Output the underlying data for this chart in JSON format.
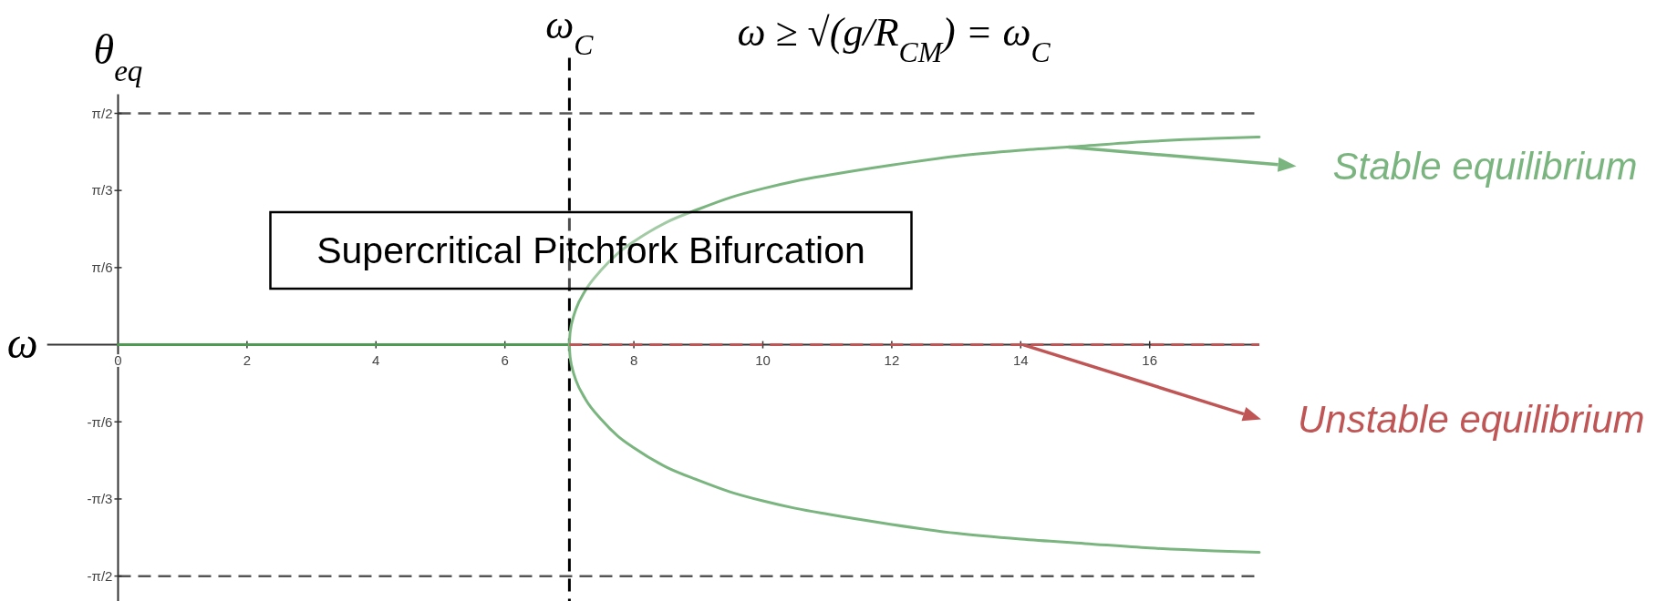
{
  "chart_data": {
    "type": "line",
    "title": "ω ≥ √(g/R$_{CM}$) = ω$_{C}$",
    "xlabel": "ω",
    "ylabel": "θ$_{eq}$",
    "line_style": "solid",
    "legend": "right",
    "series": [
      {
        "color": "#4e9a52",
        "x": [
          0,
          7
        ],
        "values": [
          0,
          0
        ]
      },
      {
        "name": "Stable equilibrium",
        "color": "#7ab57f",
        "x": [
          7,
          7.005,
          7.02,
          7.05,
          7.1,
          7.25,
          7.5,
          7.75,
          8,
          8.5,
          9,
          9.5,
          10,
          10.5,
          11,
          12,
          13,
          14,
          15,
          16,
          17,
          17.7
        ],
        "values": [
          0,
          0.05,
          0.11,
          0.17,
          0.24,
          0.37,
          0.51,
          0.62,
          0.7,
          0.83,
          0.92,
          1.0,
          1.06,
          1.11,
          1.15,
          1.22,
          1.28,
          1.32,
          1.35,
          1.38,
          1.4,
          1.41
        ]
      },
      {
        "color": "#7ab57f",
        "x": [
          7,
          7.005,
          7.02,
          7.05,
          7.1,
          7.25,
          7.5,
          7.75,
          8,
          8.5,
          9,
          9.5,
          10,
          10.5,
          11,
          12,
          13,
          14,
          15,
          16,
          17,
          17.7
        ],
        "values": [
          0,
          -0.05,
          -0.11,
          -0.17,
          -0.24,
          -0.37,
          -0.51,
          -0.62,
          -0.7,
          -0.83,
          -0.92,
          -1.0,
          -1.06,
          -1.11,
          -1.15,
          -1.22,
          -1.28,
          -1.32,
          -1.35,
          -1.38,
          -1.4,
          -1.41
        ]
      },
      {
        "name": "Unstable equilibrium",
        "color": "#c05555",
        "x": [
          7,
          17.7
        ],
        "values": [
          0,
          0
        ],
        "line_style": "dashed"
      }
    ],
    "xlim": [
      -1.1,
      17.7
    ],
    "ylim": [
      -1.74,
      1.7
    ],
    "xticks": [
      0,
      2,
      4,
      6,
      8,
      10,
      12,
      14,
      16
    ],
    "yticks": [
      {
        "value": -1.5708,
        "label": "-π/2"
      },
      {
        "value": -1.0472,
        "label": "-π/3"
      },
      {
        "value": -0.5236,
        "label": "-π/6"
      },
      {
        "value": 0.5236,
        "label": "π/6"
      },
      {
        "value": 1.0472,
        "label": "π/3"
      },
      {
        "value": 1.5708,
        "label": "π/2"
      }
    ],
    "ref_lines": [
      {
        "axis": "x",
        "value": 7,
        "label": "ω$_{C}$",
        "color": "#000000",
        "line_style": "dashed"
      },
      {
        "axis": "y",
        "value": 1.5708,
        "color": "#555555",
        "line_style": "dashed"
      },
      {
        "axis": "y",
        "value": -1.5708,
        "color": "#555555",
        "line_style": "dashed"
      }
    ],
    "annotations": [
      "Supercritical Pitchfork Bifurcation"
    ]
  }
}
